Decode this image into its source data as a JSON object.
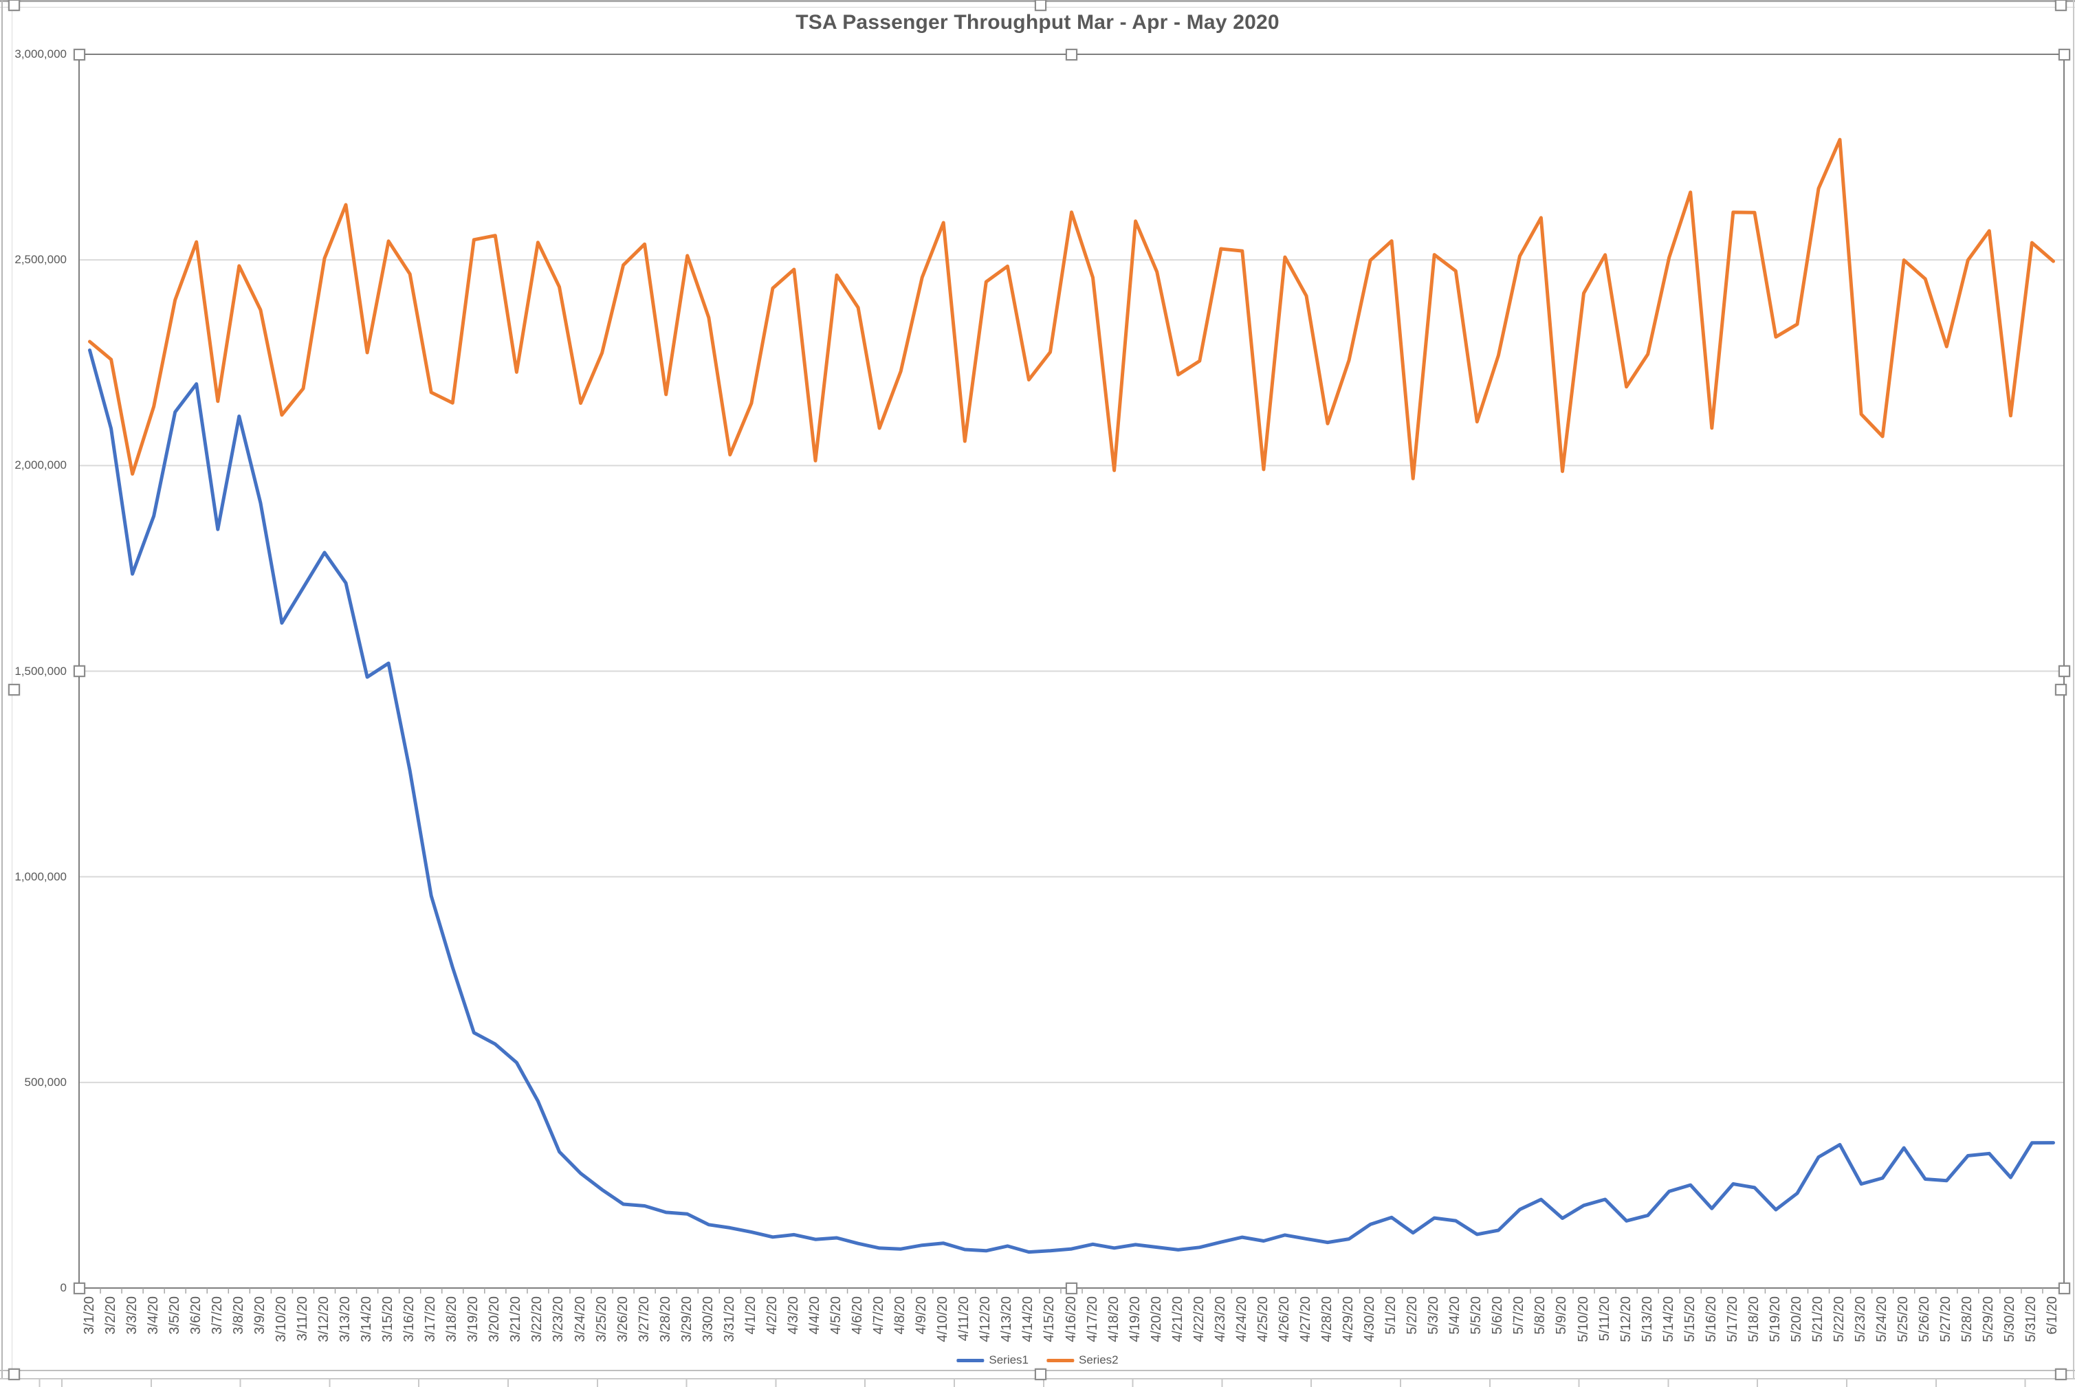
{
  "chart": {
    "title": "TSA Passenger Throughput Mar - Apr - May 2020",
    "y_axis": {
      "tick_labels": [
        "0",
        "500,000",
        "1,000,000",
        "1,500,000",
        "2,000,000",
        "2,500,000",
        "3,000,000"
      ]
    },
    "legend": {
      "items": [
        {
          "label": "Series1",
          "color": "#4472C4"
        },
        {
          "label": "Series2",
          "color": "#ED7D31"
        }
      ]
    }
  },
  "chart_data": {
    "type": "line",
    "title": "TSA Passenger Throughput Mar - Apr - May 2020",
    "xlabel": "",
    "ylabel": "",
    "ylim": [
      0,
      3000000
    ],
    "ytick_interval": 500000,
    "ytick_labels": [
      "0",
      "500,000",
      "1,000,000",
      "1,500,000",
      "2,000,000",
      "2,500,000",
      "3,000,000"
    ],
    "grid": true,
    "legend_position": "bottom-center",
    "x_tick_label_rotation": 90,
    "x": [
      "3/1/20",
      "3/2/20",
      "3/3/20",
      "3/4/20",
      "3/5/20",
      "3/6/20",
      "3/7/20",
      "3/8/20",
      "3/9/20",
      "3/10/20",
      "3/11/20",
      "3/12/20",
      "3/13/20",
      "3/14/20",
      "3/15/20",
      "3/16/20",
      "3/17/20",
      "3/18/20",
      "3/19/20",
      "3/20/20",
      "3/21/20",
      "3/22/20",
      "3/23/20",
      "3/24/20",
      "3/25/20",
      "3/26/20",
      "3/27/20",
      "3/28/20",
      "3/29/20",
      "3/30/20",
      "3/31/20",
      "4/1/20",
      "4/2/20",
      "4/3/20",
      "4/4/20",
      "4/5/20",
      "4/6/20",
      "4/7/20",
      "4/8/20",
      "4/9/20",
      "4/10/20",
      "4/11/20",
      "4/12/20",
      "4/13/20",
      "4/14/20",
      "4/15/20",
      "4/16/20",
      "4/17/20",
      "4/18/20",
      "4/19/20",
      "4/20/20",
      "4/21/20",
      "4/22/20",
      "4/23/20",
      "4/24/20",
      "4/25/20",
      "4/26/20",
      "4/27/20",
      "4/28/20",
      "4/29/20",
      "4/30/20",
      "5/1/20",
      "5/2/20",
      "5/3/20",
      "5/4/20",
      "5/5/20",
      "5/6/20",
      "5/7/20",
      "5/8/20",
      "5/9/20",
      "5/10/20",
      "5/11/20",
      "5/12/20",
      "5/13/20",
      "5/14/20",
      "5/15/20",
      "5/16/20",
      "5/17/20",
      "5/18/20",
      "5/19/20",
      "5/20/20",
      "5/21/20",
      "5/22/20",
      "5/23/20",
      "5/24/20",
      "5/25/20",
      "5/26/20",
      "5/27/20",
      "5/28/20",
      "5/29/20",
      "5/30/20",
      "5/31/20",
      "6/1/20"
    ],
    "series": [
      {
        "name": "Series1",
        "color": "#4472C4",
        "values": [
          2280522,
          2089641,
          1736393,
          1877401,
          2130015,
          2198517,
          1844811,
          2119867,
          1909363,
          1617220,
          1702686,
          1788456,
          1714372,
          1485553,
          1519192,
          1257823,
          953699,
          779631,
          620883,
          593167,
          548132,
          454516,
          331431,
          279018,
          239234,
          203858,
          199644,
          184027,
          180002,
          154080,
          146348,
          136023,
          124021,
          129763,
          118302,
          122029,
          108310,
          97130,
          94931,
          104090,
          108977,
          93645,
          90510,
          102184,
          87534,
          90784,
          95085,
          106385,
          97236,
          105382,
          99344,
          92859,
          98968,
          111627,
          123464,
          114459,
          128875,
          119629,
          110913,
          119306,
          154695,
          171563,
          134261,
          170254,
          163692,
          130601,
          140409,
          190863,
          215444,
          169580,
          200815,
          215645,
          163205,
          176667,
          234928,
          250467,
          193340,
          253190,
          244176,
          190477,
          230367,
          318449,
          348673,
          253046,
          267451,
          340769,
          264843,
          261170,
          321776,
          327133,
          268867,
          352947,
          353261
        ]
      },
      {
        "name": "Series2",
        "color": "#ED7D31",
        "values": [
          2301439,
          2257920,
          1979558,
          2143619,
          2402692,
          2543689,
          2156262,
          2485430,
          2378673,
          2122898,
          2187298,
          2503924,
          2634215,
          2274658,
          2545742,
          2465709,
          2177929,
          2152288,
          2549072,
          2559307,
          2227181,
          2542643,
          2434370,
          2151626,
          2273811,
          2487398,
          2538384,
          2172920,
          2510294,
          2360053,
          2026256,
          2151313,
          2431132,
          2476884,
          2011715,
          2462929,
          2384091,
          2091056,
          2229276,
          2457489,
          2590499,
          2059142,
          2446801,
          2484580,
          2208688,
          2275770,
          2616158,
          2457133,
          1988205,
          2594171,
          2470969,
          2221021,
          2254209,
          2526961,
          2521897,
          1990464,
          2506809,
          2412770,
          2102068,
          2256442,
          2499002,
          2546029,
          1968278,
          2512598,
          2473056,
          2106597,
          2268000,
          2509058,
          2602631,
          1985942,
          2419114,
          2512315,
          2191387,
          2270662,
          2506000,
          2664549,
          2091116,
          2615691,
          2615190,
          2312727,
          2343675,
          2673635,
          2792670,
          2124825,
          2070716,
          2499460,
          2453846,
          2289342,
          2499461,
          2570613,
          2121180,
          2541841,
          2496807
        ]
      }
    ]
  }
}
